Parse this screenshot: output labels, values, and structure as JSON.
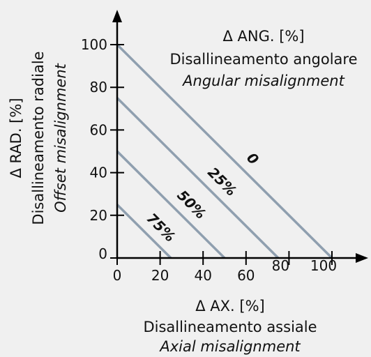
{
  "chart_data": {
    "type": "line",
    "title": "",
    "ylabel": {
      "line1": "Δ RAD. [%]",
      "line2": "Disallineamento radiale",
      "line3": "Offset misalignment"
    },
    "xlabel": {
      "line1": "Δ AX. [%]",
      "line2": "Disallineamento assiale",
      "line3": "Axial misalignment"
    },
    "series_caption": {
      "line1": "Δ ANG. [%]",
      "line2": "Disallineamento angolare",
      "line3": "Angular misalignment"
    },
    "x_ticks": [
      "0",
      "20",
      "40",
      "60",
      "80",
      "100"
    ],
    "y_ticks": [
      "0",
      "20",
      "40",
      "60",
      "80",
      "100"
    ],
    "xlim": [
      0,
      115
    ],
    "ylim": [
      0,
      110
    ],
    "grid": false,
    "line_color": "#8f9faf",
    "series": [
      {
        "name": "0",
        "points": [
          [
            0,
            100
          ],
          [
            100,
            0
          ]
        ]
      },
      {
        "name": "25%",
        "points": [
          [
            0,
            75
          ],
          [
            75,
            0
          ]
        ]
      },
      {
        "name": "50%",
        "points": [
          [
            0,
            50
          ],
          [
            50,
            0
          ]
        ]
      },
      {
        "name": "75%",
        "points": [
          [
            0,
            25
          ],
          [
            25,
            0
          ]
        ]
      }
    ]
  }
}
